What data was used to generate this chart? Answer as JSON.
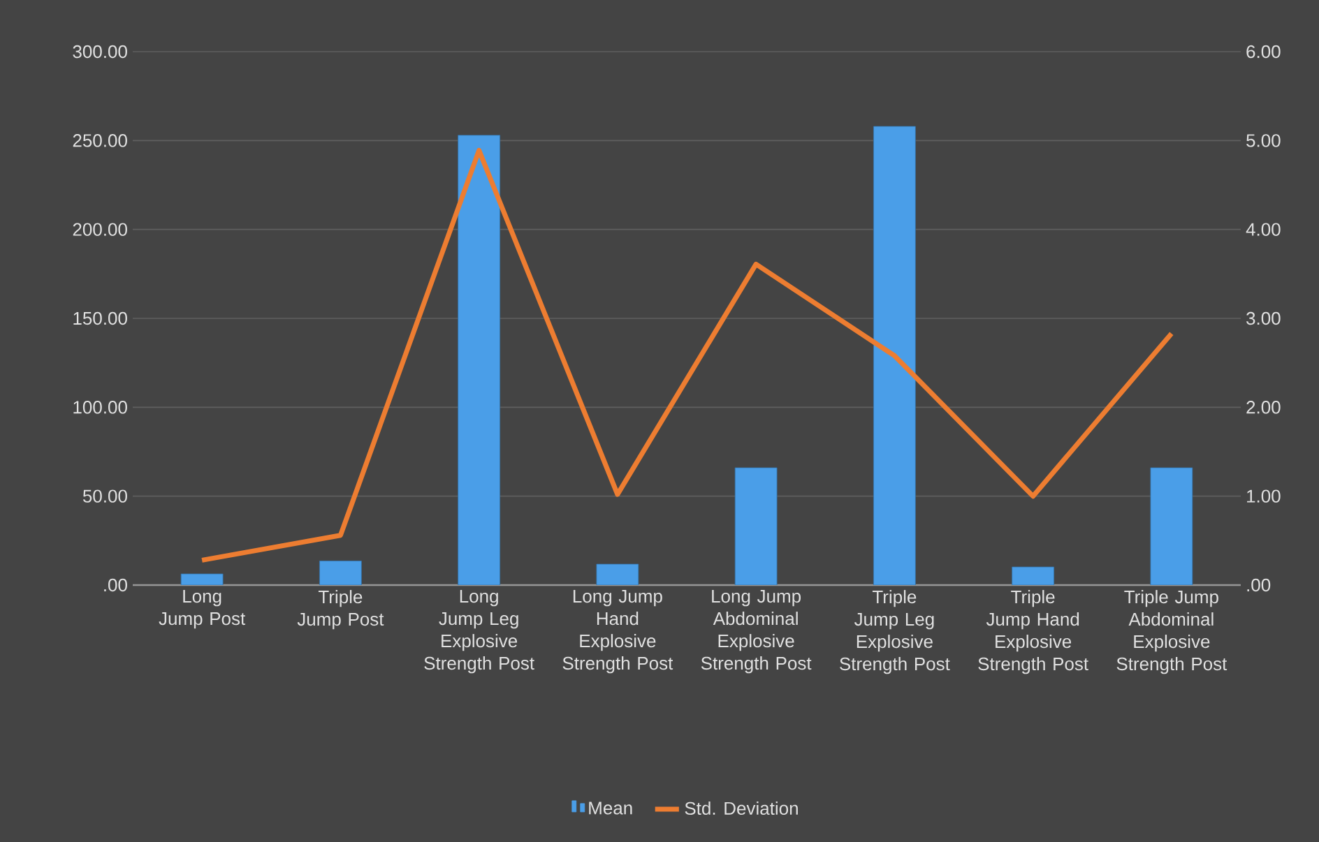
{
  "chart_data": {
    "type": "bar",
    "categories": [
      "Long Jump Post",
      "Triple Jump Post",
      "Long Jump Leg Explosive Strength Post",
      "Long Jump Hand Explosive Strength Post",
      "Long Jump Abdominal Explosive Strength Post",
      "Triple Jump Leg Explosive Strength Post",
      "Triple Jump Hand Explosive Strength Post",
      "Triple Jump Abdominal Explosive Strength Post"
    ],
    "series": [
      {
        "name": "Mean",
        "color": "#4a9ee8",
        "values": [
          6.3,
          13.6,
          253,
          11.8,
          66,
          258,
          10.2,
          66
        ]
      },
      {
        "name": "Std. Deviation",
        "type": "line",
        "axis": "y2",
        "color": "#ed7d31",
        "values": [
          0.28,
          0.56,
          4.89,
          1.02,
          3.61,
          2.58,
          1.0,
          2.83
        ]
      }
    ],
    "ylim": [
      0,
      300
    ],
    "yticks": [
      {
        "value": 0,
        "label": ".00"
      },
      {
        "value": 50,
        "label": "50.00"
      },
      {
        "value": 100,
        "label": "100.00"
      },
      {
        "value": 150,
        "label": "150.00"
      },
      {
        "value": 200,
        "label": "200.00"
      },
      {
        "value": 250,
        "label": "250.00"
      },
      {
        "value": 300,
        "label": "300.00"
      }
    ],
    "y2lim": [
      0,
      6
    ],
    "y2ticks": [
      {
        "value": 0,
        "label": ".00"
      },
      {
        "value": 1,
        "label": "1.00"
      },
      {
        "value": 2,
        "label": "2.00"
      },
      {
        "value": 3,
        "label": "3.00"
      },
      {
        "value": 4,
        "label": "4.00"
      },
      {
        "value": 5,
        "label": "5.00"
      },
      {
        "value": 6,
        "label": "6.00"
      }
    ],
    "grid": "y",
    "legend": "bottom",
    "marker": "none",
    "line_style": "solid"
  }
}
